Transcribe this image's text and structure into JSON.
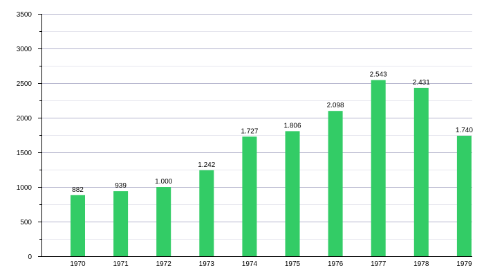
{
  "chart_data": {
    "type": "bar",
    "categories": [
      "1970",
      "1971",
      "1972",
      "1973",
      "1974",
      "1975",
      "1976",
      "1977",
      "1978",
      "1979"
    ],
    "values": [
      882,
      939,
      1000,
      1242,
      1727,
      1806,
      2098,
      2543,
      2431,
      1740
    ],
    "value_labels": [
      "882",
      "939",
      "1.000",
      "1.242",
      "1.727",
      "1.806",
      "2.098",
      "2.543",
      "2.431",
      "1.740"
    ],
    "ylim": [
      0,
      3500
    ],
    "yticks": [
      0,
      500,
      1000,
      1500,
      2000,
      2500,
      3000,
      3500
    ],
    "ytick_labels": [
      "0",
      "500",
      "1000",
      "1500",
      "2000",
      "2500",
      "3000",
      "3500"
    ],
    "grid": true,
    "colors": {
      "bar": "#33cc66",
      "grid_major": "#b3b3cc",
      "grid_minor": "#e6e6ee",
      "axis": "#000000"
    }
  }
}
